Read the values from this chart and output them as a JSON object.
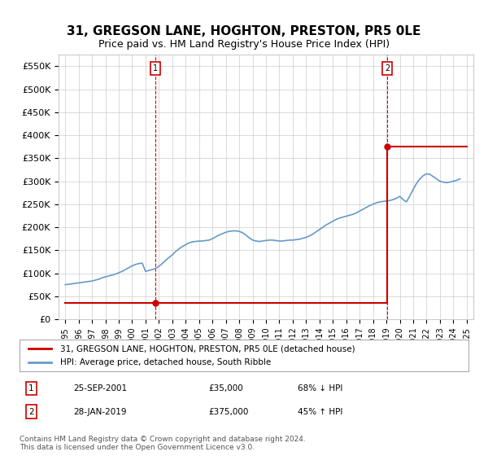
{
  "title": "31, GREGSON LANE, HOGHTON, PRESTON, PR5 0LE",
  "subtitle": "Price paid vs. HM Land Registry's House Price Index (HPI)",
  "title_fontsize": 11,
  "subtitle_fontsize": 9,
  "ylim": [
    0,
    575000
  ],
  "yticks": [
    0,
    50000,
    100000,
    150000,
    200000,
    250000,
    300000,
    350000,
    400000,
    450000,
    500000,
    550000
  ],
  "ytick_labels": [
    "£0",
    "£50K",
    "£100K",
    "£150K",
    "£200K",
    "£250K",
    "£300K",
    "£350K",
    "£400K",
    "£450K",
    "£500K",
    "£550K"
  ],
  "xlim_start": 1994.5,
  "xlim_end": 2025.5,
  "sale1_date": 2001.73,
  "sale1_price": 35000,
  "sale1_label": "1",
  "sale1_display": "25-SEP-2001",
  "sale1_amount": "£35,000",
  "sale1_hpi": "68% ↓ HPI",
  "sale2_date": 2019.07,
  "sale2_price": 375000,
  "sale2_label": "2",
  "sale2_display": "28-JAN-2019",
  "sale2_amount": "£375,000",
  "sale2_hpi": "45% ↑ HPI",
  "property_line_color": "#cc0000",
  "hpi_line_color": "#6699cc",
  "vline_color": "#cc0000",
  "grid_color": "#cccccc",
  "background_color": "#ffffff",
  "legend_label_property": "31, GREGSON LANE, HOGHTON, PRESTON, PR5 0LE (detached house)",
  "legend_label_hpi": "HPI: Average price, detached house, South Ribble",
  "footer": "Contains HM Land Registry data © Crown copyright and database right 2024.\nThis data is licensed under the Open Government Licence v3.0.",
  "hpi_x": [
    1995,
    1995.25,
    1995.5,
    1995.75,
    1996,
    1996.25,
    1996.5,
    1996.75,
    1997,
    1997.25,
    1997.5,
    1997.75,
    1998,
    1998.25,
    1998.5,
    1998.75,
    1999,
    1999.25,
    1999.5,
    1999.75,
    2000,
    2000.25,
    2000.5,
    2000.75,
    2001,
    2001.25,
    2001.5,
    2001.75,
    2002,
    2002.25,
    2002.5,
    2002.75,
    2003,
    2003.25,
    2003.5,
    2003.75,
    2004,
    2004.25,
    2004.5,
    2004.75,
    2005,
    2005.25,
    2005.5,
    2005.75,
    2006,
    2006.25,
    2006.5,
    2006.75,
    2007,
    2007.25,
    2007.5,
    2007.75,
    2008,
    2008.25,
    2008.5,
    2008.75,
    2009,
    2009.25,
    2009.5,
    2009.75,
    2010,
    2010.25,
    2010.5,
    2010.75,
    2011,
    2011.25,
    2011.5,
    2011.75,
    2012,
    2012.25,
    2012.5,
    2012.75,
    2013,
    2013.25,
    2013.5,
    2013.75,
    2014,
    2014.25,
    2014.5,
    2014.75,
    2015,
    2015.25,
    2015.5,
    2015.75,
    2016,
    2016.25,
    2016.5,
    2016.75,
    2017,
    2017.25,
    2017.5,
    2017.75,
    2018,
    2018.25,
    2018.5,
    2018.75,
    2019,
    2019.25,
    2019.5,
    2019.75,
    2020,
    2020.25,
    2020.5,
    2020.75,
    2021,
    2021.25,
    2021.5,
    2021.75,
    2022,
    2022.25,
    2022.5,
    2022.75,
    2023,
    2023.25,
    2023.5,
    2023.75,
    2024,
    2024.25,
    2024.5
  ],
  "hpi_y": [
    75000,
    76000,
    77000,
    78000,
    79000,
    80000,
    81000,
    82000,
    83000,
    85000,
    87000,
    90000,
    92000,
    94000,
    96000,
    98000,
    101000,
    104000,
    108000,
    112000,
    116000,
    119000,
    121000,
    122000,
    104000,
    106000,
    108000,
    110000,
    115000,
    121000,
    128000,
    134000,
    140000,
    147000,
    153000,
    158000,
    162000,
    166000,
    168000,
    169000,
    170000,
    170000,
    171000,
    172000,
    175000,
    179000,
    183000,
    186000,
    189000,
    191000,
    192000,
    192000,
    191000,
    188000,
    183000,
    177000,
    172000,
    170000,
    169000,
    170000,
    171000,
    172000,
    172000,
    171000,
    170000,
    170000,
    171000,
    172000,
    172000,
    173000,
    174000,
    176000,
    178000,
    181000,
    185000,
    190000,
    195000,
    200000,
    205000,
    209000,
    213000,
    217000,
    220000,
    222000,
    224000,
    226000,
    228000,
    231000,
    235000,
    239000,
    243000,
    247000,
    250000,
    253000,
    255000,
    256000,
    257000,
    258000,
    260000,
    263000,
    267000,
    260000,
    255000,
    268000,
    282000,
    295000,
    305000,
    312000,
    316000,
    315000,
    310000,
    305000,
    300000,
    298000,
    297000,
    298000,
    300000,
    302000,
    305000
  ],
  "property_steps_x": [
    1995,
    2001.73,
    2001.73,
    2019.07,
    2019.07,
    2025.0
  ],
  "property_steps_y": [
    35000,
    35000,
    35000,
    35000,
    375000,
    375000
  ]
}
